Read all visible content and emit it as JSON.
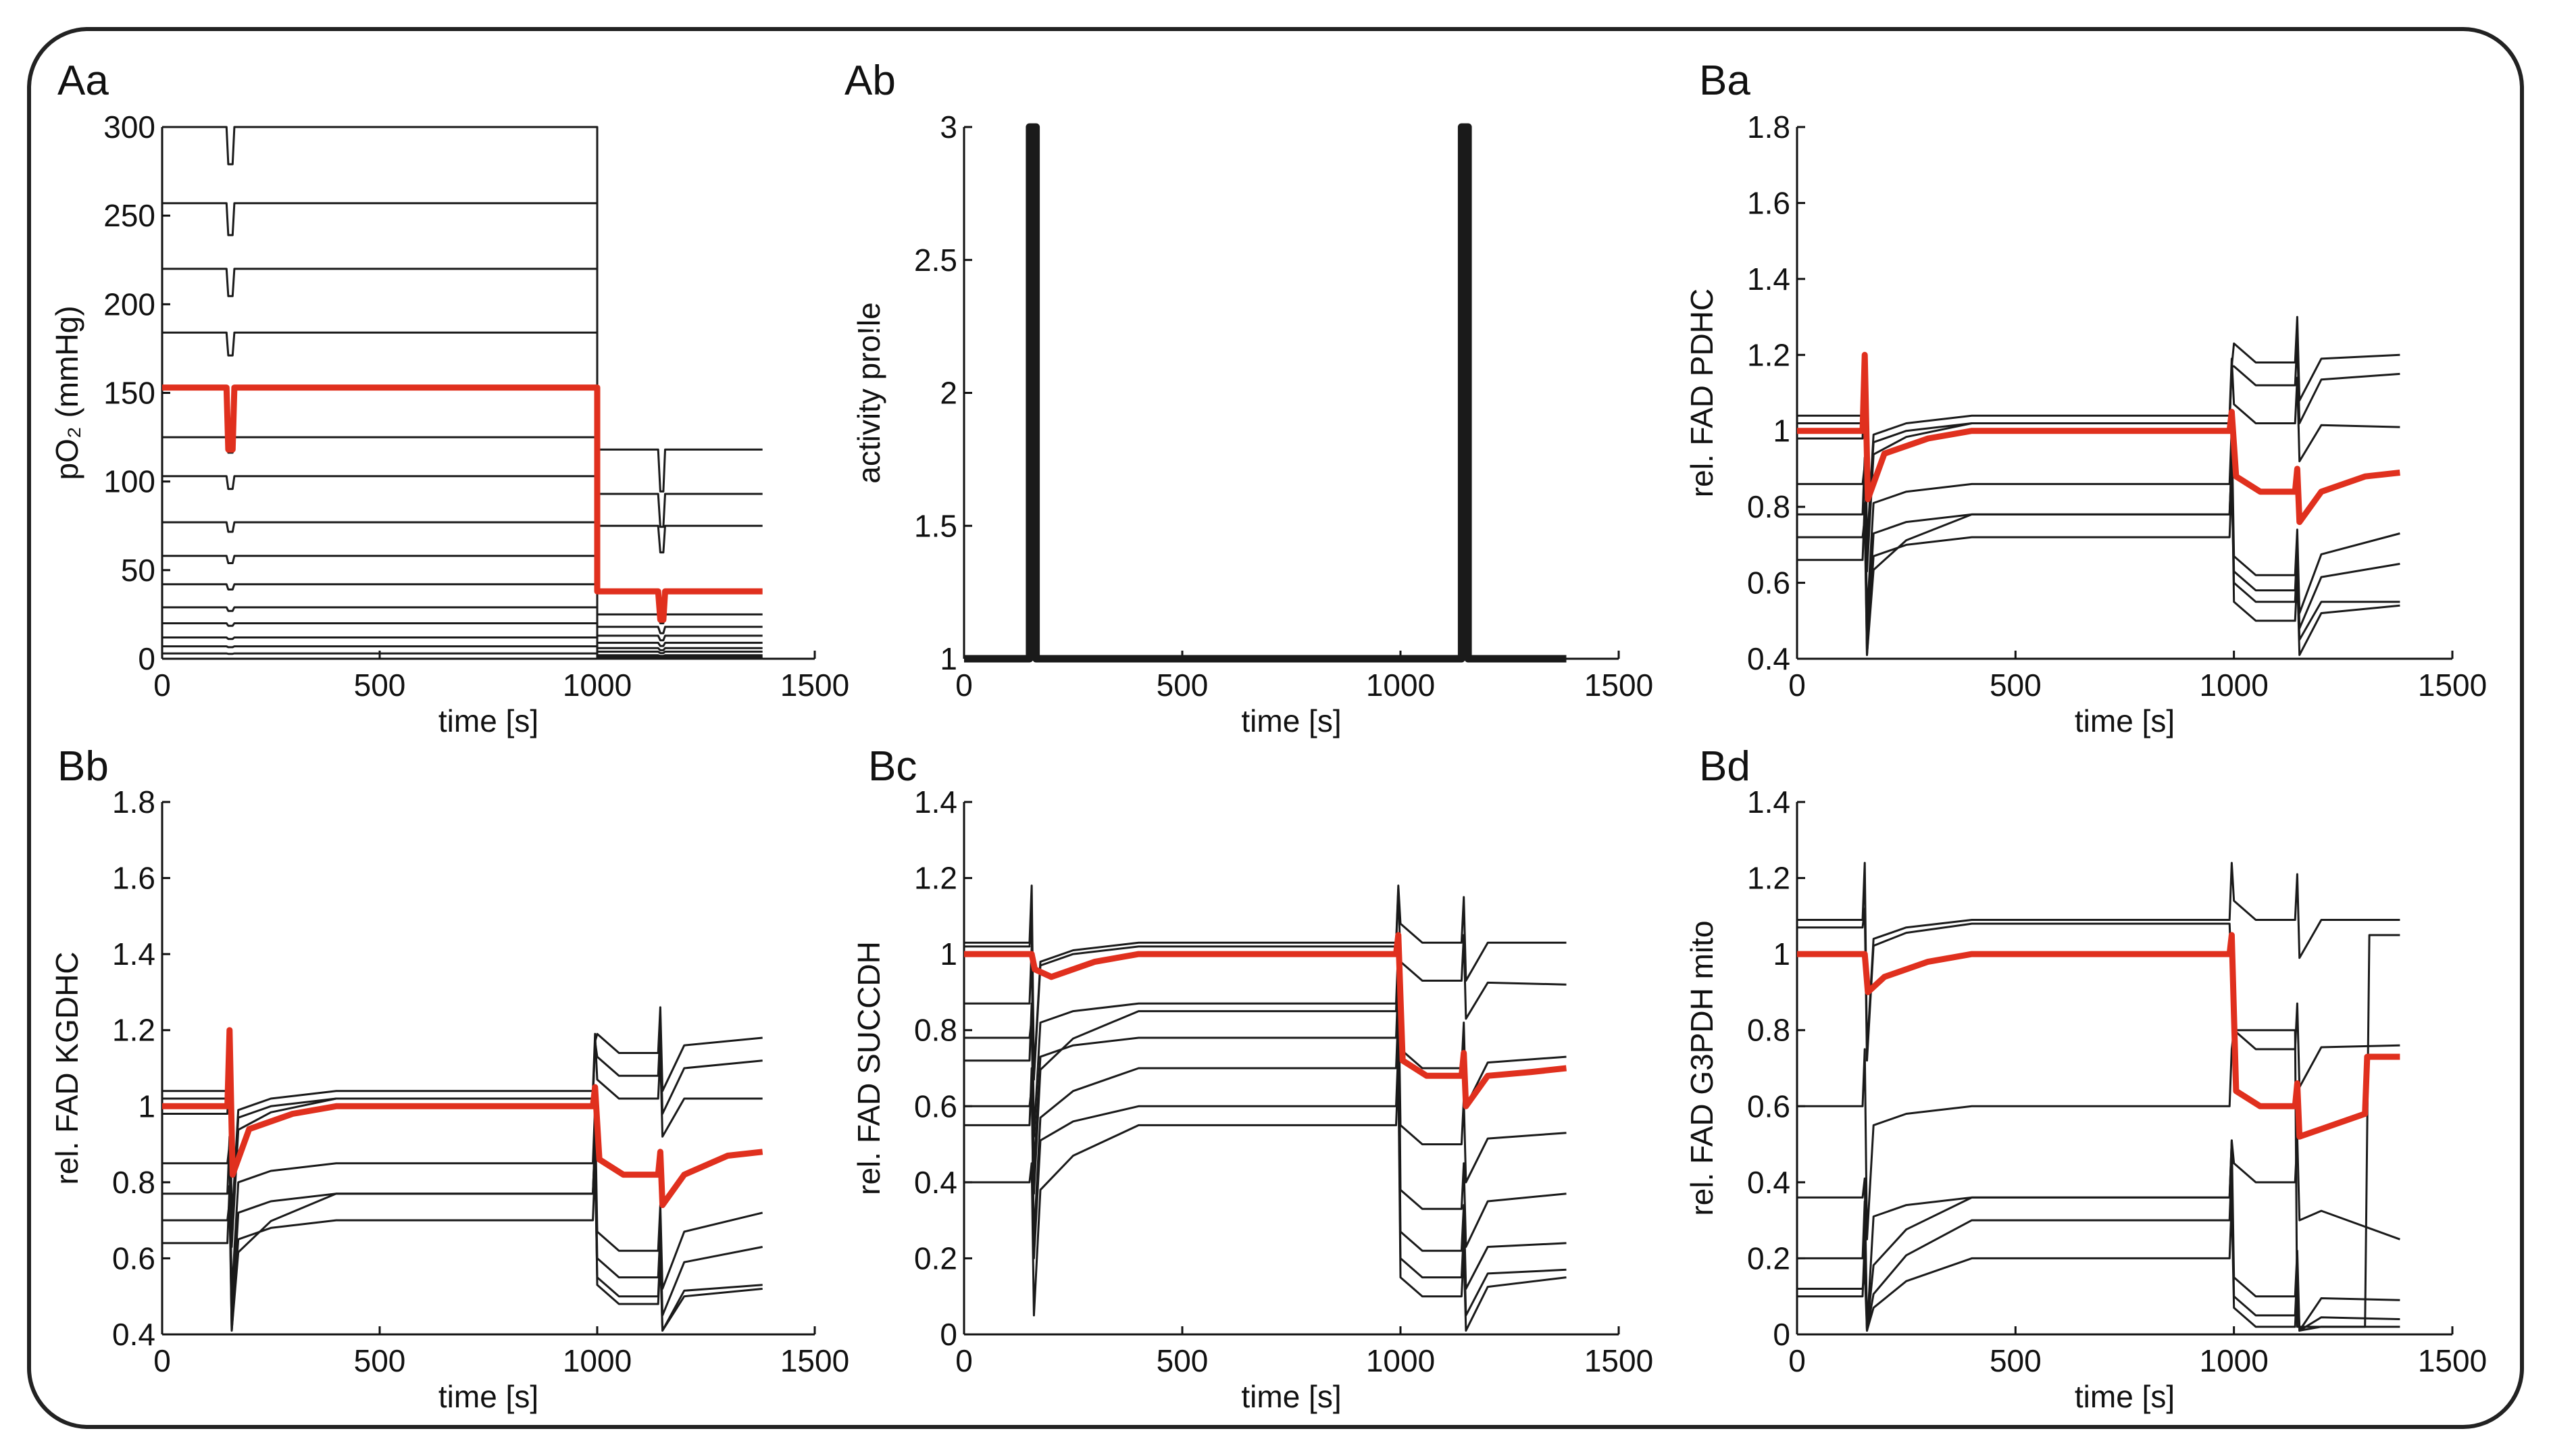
{
  "chart_data": [
    {
      "id": "Aa",
      "type": "line",
      "panel_label": "Aa",
      "xlabel": "time [s]",
      "ylabel": "pO₂ (mmHg)",
      "xlim": [
        0,
        1500
      ],
      "ylim": [
        0,
        300
      ],
      "xticks": [
        "0",
        "500",
        "1000",
        "1500"
      ],
      "yticks": [
        "0",
        "50",
        "100",
        "150",
        "200",
        "250",
        "300"
      ],
      "series_description": "pO2 levels (mmHg) before/after step at t=1000 s; red = highlighted trace; trace ends at 1380 s",
      "highlight": {
        "before": 153,
        "after": 38
      },
      "traces": [
        {
          "before": 300,
          "after": 0
        },
        {
          "before": 257,
          "after": 118
        },
        {
          "before": 220,
          "after": 93
        },
        {
          "before": 184,
          "after": 75
        },
        {
          "before": 125,
          "after": 25
        },
        {
          "before": 103,
          "after": 18
        },
        {
          "before": 77,
          "after": 13
        },
        {
          "before": 58,
          "after": 9
        },
        {
          "before": 42,
          "after": 6
        },
        {
          "before": 29,
          "after": 4
        },
        {
          "before": 20,
          "after": 2
        },
        {
          "before": 12,
          "after": 1
        },
        {
          "before": 7,
          "after": 0.5
        },
        {
          "before": 3,
          "after": 0
        }
      ]
    },
    {
      "id": "Ab",
      "type": "line",
      "panel_label": "Ab",
      "xlabel": "time [s]",
      "ylabel": "activity pro!le",
      "xlim": [
        0,
        1500
      ],
      "ylim": [
        1,
        3
      ],
      "xticks": [
        "0",
        "500",
        "1000",
        "1500"
      ],
      "yticks": [
        "1",
        "1.5",
        "2",
        "2.5",
        "3"
      ],
      "baseline": 1,
      "end": 1380,
      "pulses": [
        {
          "start": 150,
          "end": 165,
          "value": 3
        },
        {
          "start": 1140,
          "end": 1155,
          "value": 3
        }
      ]
    },
    {
      "id": "Ba",
      "type": "line",
      "panel_label": "Ba",
      "xlabel": "time [s]",
      "ylabel": "rel. FAD PDHC",
      "xlim": [
        0,
        1500
      ],
      "ylim": [
        0.4,
        1.8
      ],
      "xticks": [
        "0",
        "500",
        "1000",
        "1500"
      ],
      "yticks": [
        "0.4",
        "0.6",
        "0.8",
        "1",
        "1.2",
        "1.4",
        "1.6",
        "1.8"
      ],
      "highlight": {
        "initial": 1.0,
        "spike": 1.2,
        "dip": 0.82,
        "plateau": 1.0,
        "step_value": 0.84,
        "final": 0.89
      },
      "traces": [
        {
          "initial": 1.04,
          "plateau": 1.04,
          "after": 1.02,
          "final": 1.01
        },
        {
          "initial": 1.02,
          "plateau": 1.02,
          "after": 1.18,
          "final": 1.2
        },
        {
          "initial": 0.98,
          "plateau": 1.02,
          "after": 1.12,
          "final": 1.15
        },
        {
          "initial": 0.86,
          "plateau": 0.86,
          "after": 0.62,
          "final": 0.73
        },
        {
          "initial": 0.78,
          "plateau": 0.78,
          "after": 0.58,
          "final": 0.65
        },
        {
          "initial": 0.72,
          "plateau": 0.72,
          "after": 0.55,
          "final": 0.55
        },
        {
          "initial": 0.66,
          "plateau": 0.78,
          "after": 0.5,
          "final": 0.54
        }
      ]
    },
    {
      "id": "Bb",
      "type": "line",
      "panel_label": "Bb",
      "xlabel": "time [s]",
      "ylabel": "rel. FAD KGDHC",
      "xlim": [
        0,
        1500
      ],
      "ylim": [
        0.4,
        1.8
      ],
      "xticks": [
        "0",
        "500",
        "1000",
        "1500"
      ],
      "yticks": [
        "0.4",
        "0.6",
        "0.8",
        "1",
        "1.2",
        "1.4",
        "1.6",
        "1.8"
      ],
      "highlight": {
        "initial": 1.0,
        "spike": 1.2,
        "dip": 0.82,
        "plateau": 1.0,
        "step_value": 0.82,
        "final": 0.88
      },
      "traces": [
        {
          "initial": 1.04,
          "plateau": 1.04,
          "after": 1.02,
          "final": 1.02
        },
        {
          "initial": 1.02,
          "plateau": 1.02,
          "after": 1.14,
          "final": 1.18
        },
        {
          "initial": 0.98,
          "plateau": 1.02,
          "after": 1.08,
          "final": 1.12
        },
        {
          "initial": 0.85,
          "plateau": 0.85,
          "after": 0.62,
          "final": 0.72
        },
        {
          "initial": 0.77,
          "plateau": 0.77,
          "after": 0.55,
          "final": 0.63
        },
        {
          "initial": 0.7,
          "plateau": 0.7,
          "after": 0.5,
          "final": 0.53
        },
        {
          "initial": 0.64,
          "plateau": 0.77,
          "after": 0.48,
          "final": 0.52
        }
      ]
    },
    {
      "id": "Bc",
      "type": "line",
      "panel_label": "Bc",
      "xlabel": "time [s]",
      "ylabel": "rel. FAD SUCCDH",
      "xlim": [
        0,
        1500
      ],
      "ylim": [
        0,
        1.4
      ],
      "xticks": [
        "0",
        "500",
        "1000",
        "1500"
      ],
      "yticks": [
        "0",
        "0.2",
        "0.4",
        "0.6",
        "0.8",
        "1",
        "1.2",
        "1.4"
      ],
      "highlight": {
        "initial": 1.0,
        "spike": 1.0,
        "dip": 0.96,
        "plateau": 1.0,
        "step_value": 0.68,
        "final": 0.7
      },
      "traces": [
        {
          "initial": 1.03,
          "plateau": 1.03,
          "after": 1.03,
          "final": 1.03
        },
        {
          "initial": 1.02,
          "plateau": 1.02,
          "after": 0.93,
          "final": 0.92
        },
        {
          "initial": 0.87,
          "plateau": 0.87,
          "after": 0.7,
          "final": 0.73
        },
        {
          "initial": 0.78,
          "plateau": 0.78,
          "after": 0.5,
          "final": 0.53
        },
        {
          "initial": 0.72,
          "plateau": 0.85,
          "after": 0.33,
          "final": 0.37
        },
        {
          "initial": 0.6,
          "plateau": 0.7,
          "after": 0.22,
          "final": 0.24
        },
        {
          "initial": 0.55,
          "plateau": 0.6,
          "after": 0.15,
          "final": 0.17
        },
        {
          "initial": 0.4,
          "plateau": 0.55,
          "after": 0.1,
          "final": 0.15
        }
      ]
    },
    {
      "id": "Bd",
      "type": "line",
      "panel_label": "Bd",
      "xlabel": "time [s]",
      "ylabel": "rel. FAD G3PDH mito",
      "xlim": [
        0,
        1500
      ],
      "ylim": [
        0,
        1.4
      ],
      "xticks": [
        "0",
        "500",
        "1000",
        "1500"
      ],
      "yticks": [
        "0",
        "0.2",
        "0.4",
        "0.6",
        "0.8",
        "1",
        "1.2",
        "1.4"
      ],
      "highlight": {
        "initial": 1.0,
        "spike": 1.0,
        "dip": 0.9,
        "plateau": 1.0,
        "step_value": 0.6,
        "final": 0.73
      },
      "traces": [
        {
          "initial": 1.09,
          "plateau": 1.09,
          "after": 1.09,
          "final": 1.09
        },
        {
          "initial": 1.07,
          "plateau": 1.08,
          "after": 0.8,
          "final": 1.05
        },
        {
          "initial": 0.6,
          "plateau": 0.6,
          "after": 0.75,
          "final": 0.76
        },
        {
          "initial": 0.36,
          "plateau": 0.36,
          "after": 0.4,
          "final": 0.25
        },
        {
          "initial": 0.2,
          "plateau": 0.36,
          "after": 0.1,
          "final": 0.09
        },
        {
          "initial": 0.12,
          "plateau": 0.3,
          "after": 0.05,
          "final": 0.04
        },
        {
          "initial": 0.1,
          "plateau": 0.2,
          "after": 0.02,
          "final": 0.02
        }
      ]
    }
  ],
  "colors": {
    "highlight": "#e0301e",
    "trace": "#1a1a1a",
    "axis": "#111111"
  }
}
